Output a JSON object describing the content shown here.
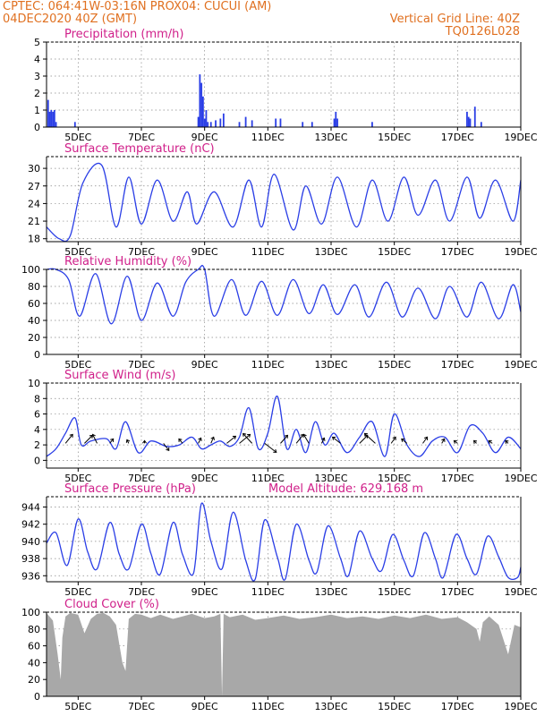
{
  "header": {
    "line1": "CPTEC:  064:41W-03:16N  PROX04: CUCUI (AM)",
    "line2": "04DEC2020 40Z (GMT)",
    "grid_note": "Vertical Grid Line: 40Z",
    "run_code": "TQ0126L028",
    "model_altitude": "Model Altitude: 629.168 m"
  },
  "colors": {
    "header": "#e07020",
    "panel_title": "#d0208a",
    "series": "#2a3ee6",
    "cloud": "#a8a8a8",
    "axis": "#000000"
  },
  "x_axis": {
    "unit": "days",
    "range": [
      4.0,
      19.0
    ],
    "ticks": [
      5,
      7,
      9,
      11,
      13,
      15,
      17,
      19
    ],
    "tick_labels": [
      "5DEC",
      "7DEC",
      "9DEC",
      "11DEC",
      "13DEC",
      "15DEC",
      "17DEC",
      "19DEC"
    ]
  },
  "chart_data": [
    {
      "type": "bar",
      "title": "Precipitation (mm/h)",
      "ylim": [
        0,
        5
      ],
      "yticks": [
        0,
        1,
        2,
        3,
        4,
        5
      ],
      "x": [
        4.05,
        4.1,
        4.15,
        4.2,
        4.25,
        4.3,
        4.9,
        8.8,
        8.85,
        8.9,
        8.95,
        9.0,
        9.05,
        9.1,
        9.2,
        9.35,
        9.5,
        9.6,
        10.1,
        10.3,
        10.5,
        11.25,
        11.4,
        12.1,
        12.4,
        13.1,
        13.15,
        13.2,
        14.3,
        17.3,
        17.35,
        17.4,
        17.55,
        17.75
      ],
      "values": [
        1.6,
        0.9,
        1.0,
        0.9,
        1.0,
        0.3,
        0.3,
        0.6,
        3.1,
        2.6,
        1.8,
        0.5,
        1.0,
        0.3,
        0.3,
        0.4,
        0.5,
        0.8,
        0.3,
        0.6,
        0.4,
        0.5,
        0.5,
        0.3,
        0.3,
        0.5,
        0.9,
        0.5,
        0.3,
        0.9,
        0.6,
        0.5,
        1.2,
        0.3
      ]
    },
    {
      "type": "line",
      "title": "Surface Temperature (nC)",
      "ylim": [
        17.5,
        32
      ],
      "yticks": [
        18,
        21,
        24,
        27,
        30
      ],
      "x": [
        4.0,
        4.4,
        4.75,
        5.15,
        5.75,
        6.2,
        6.6,
        7.0,
        7.5,
        8.0,
        8.45,
        8.75,
        9.3,
        9.9,
        10.4,
        10.8,
        11.2,
        11.8,
        12.2,
        12.7,
        13.2,
        13.8,
        14.3,
        14.8,
        15.3,
        15.75,
        16.3,
        16.75,
        17.3,
        17.7,
        18.2,
        18.75,
        19.0
      ],
      "values": [
        20.0,
        18.0,
        18.5,
        27.5,
        30.5,
        20.0,
        28.5,
        20.5,
        28.0,
        21.0,
        26.0,
        20.5,
        26.0,
        20.0,
        28.0,
        20.0,
        29.0,
        19.5,
        27.0,
        20.5,
        28.5,
        20.0,
        28.0,
        21.0,
        28.5,
        22.0,
        28.0,
        21.0,
        28.5,
        21.5,
        28.0,
        21.0,
        28.0
      ]
    },
    {
      "type": "line",
      "title": "Relative Humidity (%)",
      "ylim": [
        0,
        100
      ],
      "yticks": [
        0,
        20,
        40,
        60,
        80,
        100
      ],
      "x": [
        4.0,
        4.3,
        4.7,
        5.05,
        5.55,
        6.05,
        6.55,
        7.0,
        7.5,
        8.0,
        8.4,
        8.8,
        9.0,
        9.3,
        9.85,
        10.3,
        10.8,
        11.3,
        11.8,
        12.3,
        12.75,
        13.2,
        13.75,
        14.2,
        14.75,
        15.25,
        15.75,
        16.3,
        16.75,
        17.3,
        17.75,
        18.3,
        18.75,
        19.0
      ],
      "values": [
        100,
        100,
        88,
        45,
        95,
        36,
        92,
        40,
        84,
        45,
        85,
        100,
        100,
        45,
        88,
        46,
        86,
        46,
        88,
        48,
        82,
        47,
        82,
        44,
        85,
        44,
        78,
        42,
        80,
        44,
        85,
        42,
        82,
        50
      ]
    },
    {
      "type": "line",
      "title": "Surface Wind (m/s)",
      "ylim": [
        -1,
        10
      ],
      "yticks": [
        0,
        2,
        4,
        6,
        8,
        10
      ],
      "x": [
        4.0,
        4.3,
        4.6,
        4.9,
        5.1,
        5.4,
        5.9,
        6.2,
        6.5,
        6.9,
        7.3,
        7.8,
        8.2,
        8.6,
        8.9,
        9.2,
        9.5,
        9.8,
        10.1,
        10.4,
        10.7,
        11.0,
        11.3,
        11.6,
        11.9,
        12.2,
        12.5,
        12.8,
        13.1,
        13.5,
        13.9,
        14.3,
        14.7,
        15.0,
        15.4,
        15.8,
        16.2,
        16.6,
        17.0,
        17.4,
        17.8,
        18.2,
        18.6,
        19.0
      ],
      "values": [
        0.5,
        1.5,
        3.5,
        5.5,
        2.0,
        2.5,
        2.8,
        1.5,
        5.0,
        1.0,
        2.5,
        1.8,
        2.0,
        3.0,
        1.5,
        2.0,
        2.5,
        1.8,
        3.0,
        6.8,
        1.5,
        3.5,
        8.3,
        1.5,
        4.0,
        1.0,
        5.0,
        2.0,
        3.5,
        1.0,
        3.0,
        5.0,
        0.5,
        6.0,
        2.0,
        0.5,
        2.5,
        3.0,
        1.0,
        4.5,
        3.5,
        1.0,
        3.0,
        1.5
      ],
      "vectors": [
        {
          "x": 4.6,
          "dx": 0.8,
          "dy": 1.0
        },
        {
          "x": 5.2,
          "dx": 0.9,
          "dy": 0.9
        },
        {
          "x": 5.6,
          "dx": -0.5,
          "dy": 1.0
        },
        {
          "x": 6.0,
          "dx": 0.4,
          "dy": 0.5
        },
        {
          "x": 6.6,
          "dx": -0.2,
          "dy": 0.4
        },
        {
          "x": 7.1,
          "dx": 0.0,
          "dy": 0.3
        },
        {
          "x": 7.7,
          "dx": 0.6,
          "dy": -0.8
        },
        {
          "x": 8.3,
          "dx": -0.4,
          "dy": 0.5
        },
        {
          "x": 8.8,
          "dx": 0.3,
          "dy": 0.6
        },
        {
          "x": 9.2,
          "dx": 0.3,
          "dy": 0.7
        },
        {
          "x": 9.7,
          "dx": 1.0,
          "dy": 0.8
        },
        {
          "x": 10.1,
          "dx": 1.2,
          "dy": 1.0
        },
        {
          "x": 10.5,
          "dx": -1.0,
          "dy": 1.1
        },
        {
          "x": 10.9,
          "dx": 1.3,
          "dy": -1.0
        },
        {
          "x": 11.4,
          "dx": 0.8,
          "dy": 0.9
        },
        {
          "x": 11.9,
          "dx": 0.8,
          "dy": 1.0
        },
        {
          "x": 12.3,
          "dx": -0.6,
          "dy": 1.0
        },
        {
          "x": 12.7,
          "dx": 0.3,
          "dy": 0.6
        },
        {
          "x": 13.3,
          "dx": -0.9,
          "dy": 0.7
        },
        {
          "x": 13.9,
          "dx": 0.9,
          "dy": 0.9
        },
        {
          "x": 14.4,
          "dx": -1.2,
          "dy": 1.1
        },
        {
          "x": 14.9,
          "dx": 0.5,
          "dy": 0.7
        },
        {
          "x": 15.4,
          "dx": -0.6,
          "dy": 0.5
        },
        {
          "x": 15.9,
          "dx": 0.5,
          "dy": 0.7
        },
        {
          "x": 16.5,
          "dx": 0.3,
          "dy": 0.5
        },
        {
          "x": 17.0,
          "dx": -0.4,
          "dy": 0.3
        },
        {
          "x": 17.6,
          "dx": -0.3,
          "dy": 0.3
        },
        {
          "x": 18.1,
          "dx": -0.4,
          "dy": 0.3
        },
        {
          "x": 18.6,
          "dx": -0.3,
          "dy": 0.3
        }
      ]
    },
    {
      "type": "line",
      "title": "Surface Pressure (hPa)",
      "ylim": [
        935.3,
        945.2
      ],
      "yticks": [
        936,
        938,
        940,
        942,
        944
      ],
      "x": [
        4.0,
        4.3,
        4.65,
        5.0,
        5.3,
        5.6,
        6.0,
        6.3,
        6.6,
        7.0,
        7.3,
        7.6,
        8.0,
        8.3,
        8.65,
        8.9,
        9.2,
        9.55,
        9.9,
        10.3,
        10.6,
        10.9,
        11.3,
        11.55,
        11.9,
        12.3,
        12.55,
        12.9,
        13.3,
        13.55,
        13.9,
        14.3,
        14.6,
        14.95,
        15.3,
        15.6,
        15.95,
        16.3,
        16.55,
        16.95,
        17.3,
        17.6,
        17.95,
        18.3,
        18.6,
        18.9,
        19.0
      ],
      "values": [
        939.8,
        941.0,
        937.2,
        942.6,
        938.8,
        936.8,
        942.2,
        938.5,
        936.8,
        942.0,
        938.6,
        936.2,
        942.2,
        938.5,
        936.3,
        944.4,
        940.0,
        936.8,
        943.4,
        937.8,
        935.6,
        942.5,
        938.2,
        935.6,
        942.0,
        937.8,
        936.4,
        941.8,
        938.0,
        936.0,
        941.2,
        938.0,
        936.6,
        940.8,
        937.8,
        936.0,
        941.0,
        938.0,
        935.8,
        940.8,
        938.0,
        936.2,
        940.6,
        938.2,
        935.8,
        935.8,
        937.0
      ]
    },
    {
      "type": "area",
      "title": "Cloud Cover (%)",
      "ylim": [
        0,
        100
      ],
      "yticks": [
        0,
        20,
        40,
        60,
        80,
        100
      ],
      "x": [
        4.0,
        4.2,
        4.35,
        4.45,
        4.5,
        4.6,
        4.75,
        5.0,
        5.2,
        5.4,
        5.6,
        5.8,
        6.0,
        6.2,
        6.4,
        6.5,
        6.6,
        6.8,
        7.0,
        7.3,
        7.6,
        8.0,
        8.3,
        8.6,
        9.0,
        9.3,
        9.5,
        9.55,
        9.6,
        9.8,
        10.2,
        10.6,
        11.0,
        11.5,
        12.0,
        12.5,
        13.0,
        13.5,
        14.0,
        14.5,
        15.0,
        15.5,
        16.0,
        16.5,
        17.0,
        17.3,
        17.6,
        17.7,
        17.8,
        18.0,
        18.3,
        18.6,
        18.8,
        19.0
      ],
      "values": [
        99,
        90,
        50,
        20,
        70,
        95,
        99,
        97,
        75,
        92,
        98,
        99,
        95,
        85,
        40,
        30,
        92,
        98,
        97,
        93,
        97,
        92,
        95,
        98,
        93,
        95,
        98,
        0,
        98,
        94,
        97,
        91,
        93,
        96,
        92,
        94,
        97,
        93,
        95,
        92,
        96,
        93,
        97,
        92,
        94,
        88,
        80,
        65,
        88,
        95,
        85,
        50,
        85,
        82
      ]
    }
  ]
}
